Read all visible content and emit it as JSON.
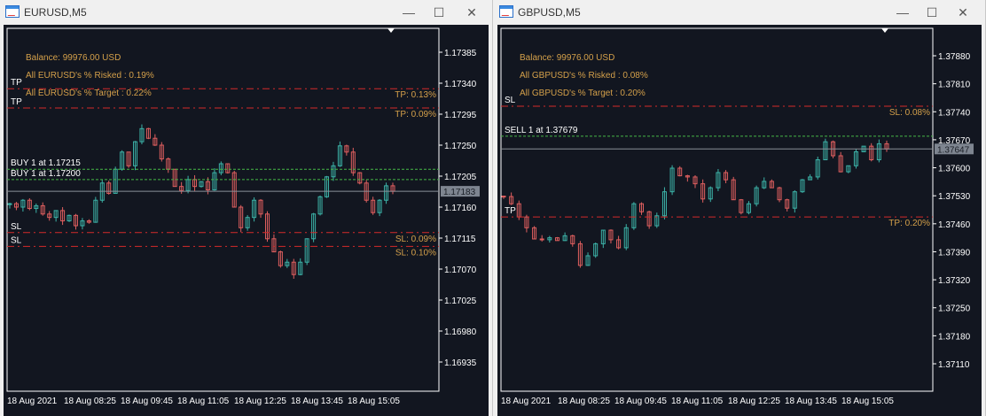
{
  "windows": [
    {
      "title": "EURUSD,M5",
      "info": [
        "Balance: 99976.00 USD",
        "All EURUSD's % Risked : 0.19%",
        "All EURUSD's % Target : 0.22%"
      ],
      "yTicks": [
        "1.17385",
        "1.17340",
        "1.17295",
        "1.17250",
        "1.17205",
        "1.17160",
        "1.17115",
        "1.17070",
        "1.17025",
        "1.16980",
        "1.16935"
      ],
      "yAxisLabels": [
        "1.17385",
        "1.17340",
        "1.17295",
        "1.17250",
        "1.17205",
        "1.17160",
        "1.17115",
        "1.17070",
        "1.17025",
        "1.16980",
        "1.16935"
      ],
      "xLabels": [
        "18 Aug 2021",
        "18 Aug 08:25",
        "18 Aug 09:45",
        "18 Aug 11:05",
        "18 Aug 12:25",
        "18 Aug 13:45",
        "18 Aug 15:05"
      ],
      "currentPrice": "1.17183",
      "levels": [
        {
          "price": 1.17332,
          "kind": "tp",
          "left": "TP",
          "right": "TP: 0.13%"
        },
        {
          "price": 1.17304,
          "kind": "tp",
          "left": "TP",
          "right": "TP: 0.09%"
        },
        {
          "price": 1.17215,
          "kind": "entry",
          "left": "BUY 1 at 1.17215",
          "right": ""
        },
        {
          "price": 1.172,
          "kind": "entry",
          "left": "BUY 1 at 1.17200",
          "right": ""
        },
        {
          "price": 1.17123,
          "kind": "sl",
          "left": "SL",
          "right": "SL: 0.09%"
        },
        {
          "price": 1.17103,
          "kind": "sl",
          "left": "SL",
          "right": "SL: 0.10%"
        }
      ],
      "closes": [
        1.17165,
        1.1716,
        1.1717,
        1.17158,
        1.17162,
        1.1715,
        1.17145,
        1.17155,
        1.1714,
        1.17148,
        1.17133,
        1.1714,
        1.17138,
        1.1717,
        1.17195,
        1.1718,
        1.17215,
        1.1724,
        1.1722,
        1.17255,
        1.17274,
        1.1726,
        1.1725,
        1.1723,
        1.17215,
        1.1719,
        1.17184,
        1.172,
        1.1719,
        1.17197,
        1.17185,
        1.1721,
        1.17223,
        1.1721,
        1.1716,
        1.1713,
        1.17145,
        1.1717,
        1.1715,
        1.17114,
        1.17095,
        1.17075,
        1.1708,
        1.17062,
        1.1708,
        1.17114,
        1.1715,
        1.17175,
        1.17204,
        1.1722,
        1.17249,
        1.1724,
        1.1721,
        1.17195,
        1.1717,
        1.17152,
        1.1717,
        1.17191,
        1.17183
      ]
    },
    {
      "title": "GBPUSD,M5",
      "info": [
        "Balance: 99976.00 USD",
        "All GBPUSD's % Risked : 0.08%",
        "All GBPUSD's % Target : 0.20%"
      ],
      "yTicks": [
        "1.37880",
        "1.37810",
        "1.37740",
        "1.37670",
        "1.37600",
        "1.37530",
        "1.37460",
        "1.37390",
        "1.37320",
        "1.37250",
        "1.37180",
        "1.37110"
      ],
      "yAxisLabels": [
        "1.37880",
        "1.37810",
        "1.37740",
        "1.37670",
        "1.37600",
        "1.37530",
        "1.37460",
        "1.37390",
        "1.37320",
        "1.37250",
        "1.37180",
        "1.37110"
      ],
      "xLabels": [
        "18 Aug 2021",
        "18 Aug 08:25",
        "18 Aug 09:45",
        "18 Aug 11:05",
        "18 Aug 12:25",
        "18 Aug 13:45",
        "18 Aug 15:05"
      ],
      "currentPrice": "1.37647",
      "levels": [
        {
          "price": 1.37754,
          "kind": "sl",
          "left": "SL",
          "right": "SL: 0.08%"
        },
        {
          "price": 1.37679,
          "kind": "entry",
          "left": "SELL 1 at 1.37679",
          "right": ""
        },
        {
          "price": 1.37477,
          "kind": "tp",
          "left": "TP",
          "right": "TP: 0.20%"
        }
      ],
      "closes": [
        1.37528,
        1.3751,
        1.37477,
        1.3745,
        1.37422,
        1.3742,
        1.37425,
        1.37418,
        1.3743,
        1.3741,
        1.37356,
        1.3738,
        1.3741,
        1.37444,
        1.3742,
        1.374,
        1.3745,
        1.3751,
        1.3749,
        1.37455,
        1.3748,
        1.3754,
        1.37599,
        1.3758,
        1.37577,
        1.3756,
        1.37522,
        1.3755,
        1.37588,
        1.3757,
        1.3752,
        1.37488,
        1.3751,
        1.3755,
        1.37566,
        1.3755,
        1.3752,
        1.37499,
        1.3754,
        1.3757,
        1.37577,
        1.3762,
        1.37665,
        1.3763,
        1.3759,
        1.37605,
        1.3764,
        1.37654,
        1.3762,
        1.3766,
        1.37647
      ]
    }
  ],
  "colors": {
    "bg": "#121620",
    "bull": "#3cb3a8",
    "bear": "#e05f5f",
    "tpsl": "#d42a2a",
    "entry": "#46b846",
    "info": "#d4a04a",
    "axis": "#ffffff"
  }
}
